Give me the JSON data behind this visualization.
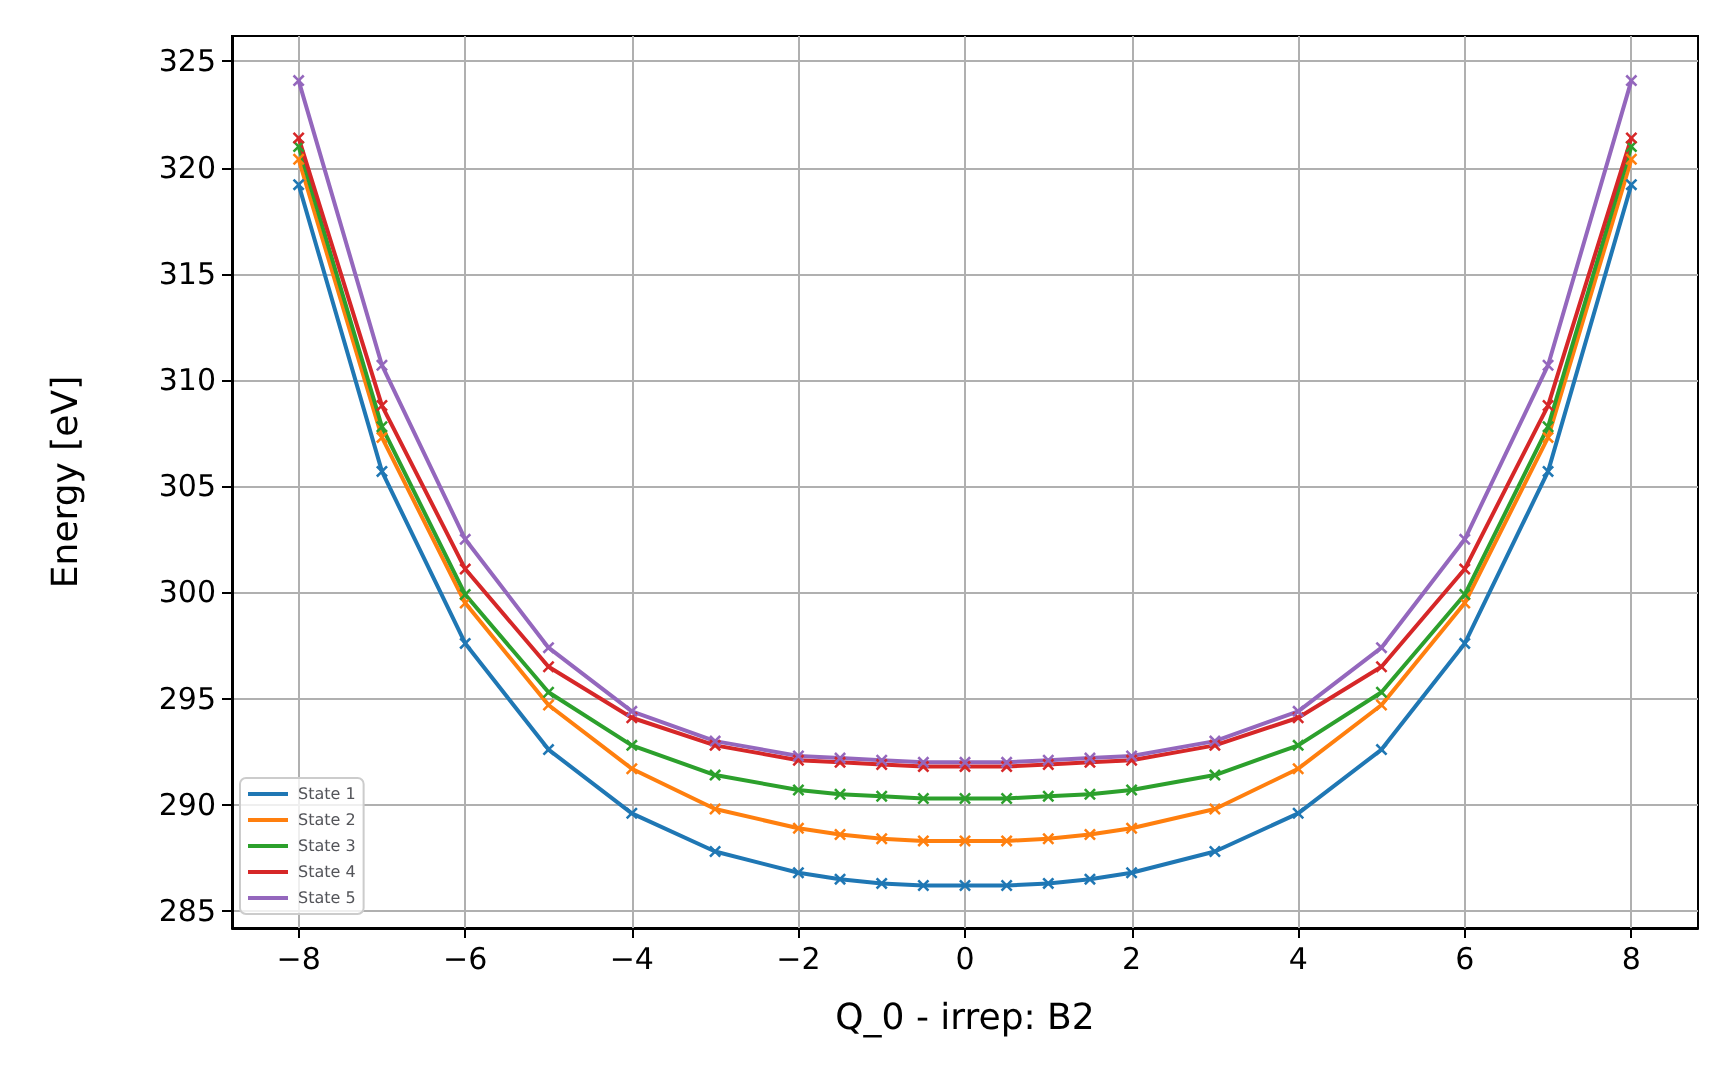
{
  "chart_data": {
    "type": "line",
    "xlabel": "Q_0 - irrep: B2",
    "ylabel": "Energy [eV]",
    "x": [
      -8,
      -7,
      -6,
      -5,
      -4,
      -3,
      -2,
      -1.5,
      -1,
      -0.5,
      0,
      0.5,
      1,
      1.5,
      2,
      3,
      4,
      5,
      6,
      7,
      8
    ],
    "series": [
      {
        "name": "State 1",
        "color": "#1f77b4",
        "values": [
          319.2,
          305.7,
          297.6,
          292.6,
          289.6,
          287.8,
          286.8,
          286.5,
          286.3,
          286.2,
          286.2,
          286.2,
          286.3,
          286.5,
          286.8,
          287.8,
          289.6,
          292.6,
          297.6,
          305.7,
          319.2
        ]
      },
      {
        "name": "State 2",
        "color": "#ff7f0e",
        "values": [
          320.4,
          307.3,
          299.5,
          294.7,
          291.7,
          289.8,
          288.9,
          288.6,
          288.4,
          288.3,
          288.3,
          288.3,
          288.4,
          288.6,
          288.9,
          289.8,
          291.7,
          294.7,
          299.5,
          307.3,
          320.4
        ]
      },
      {
        "name": "State 3",
        "color": "#2ca02c",
        "values": [
          321.0,
          307.8,
          299.9,
          295.3,
          292.8,
          291.4,
          290.7,
          290.5,
          290.4,
          290.3,
          290.3,
          290.3,
          290.4,
          290.5,
          290.7,
          291.4,
          292.8,
          295.3,
          299.9,
          307.8,
          321.0
        ]
      },
      {
        "name": "State 4",
        "color": "#d62728",
        "values": [
          321.4,
          308.8,
          301.1,
          296.5,
          294.1,
          292.8,
          292.1,
          292.0,
          291.9,
          291.8,
          291.8,
          291.8,
          291.9,
          292.0,
          292.1,
          292.8,
          294.1,
          296.5,
          301.1,
          308.8,
          321.4
        ]
      },
      {
        "name": "State 5",
        "color": "#9467bd",
        "values": [
          324.1,
          310.7,
          302.5,
          297.4,
          294.4,
          293.0,
          292.3,
          292.2,
          292.1,
          292.0,
          292.0,
          292.0,
          292.1,
          292.2,
          292.3,
          293.0,
          294.4,
          297.4,
          302.5,
          310.7,
          324.1
        ]
      }
    ],
    "xlim": [
      -8.8,
      8.8
    ],
    "ylim": [
      284.2,
      326.2
    ],
    "xticks": [
      {
        "value": -8,
        "label": "−8"
      },
      {
        "value": -6,
        "label": "−6"
      },
      {
        "value": -4,
        "label": "−4"
      },
      {
        "value": -2,
        "label": "−2"
      },
      0,
      2,
      4,
      6,
      8
    ],
    "yticks": [
      285,
      290,
      295,
      300,
      305,
      310,
      315,
      320,
      325
    ],
    "grid": true,
    "legend": "bottom left",
    "marker": "cross",
    "line_style": "solid"
  }
}
